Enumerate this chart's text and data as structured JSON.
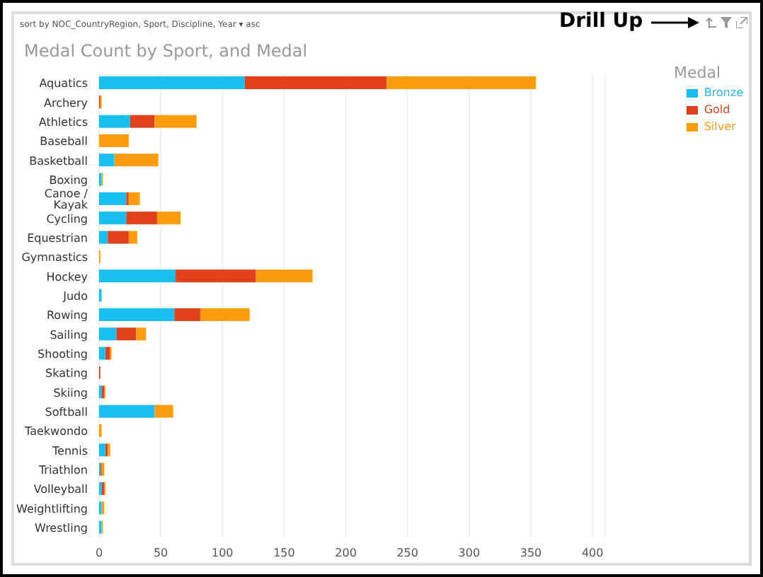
{
  "chart_data": {
    "type": "bar",
    "orientation": "horizontal",
    "stacked": true,
    "title": "Medal Count by Sport, and Medal",
    "subtitle": "sort by  NOC_CountryRegion, Sport, Discipline, Year  ▾  asc",
    "annotations": [
      "Drill Up"
    ],
    "legend_title": "Medal",
    "categories": [
      "Aquatics",
      "Archery",
      "Athletics",
      "Baseball",
      "Basketball",
      "Boxing",
      "Canoe / Kayak",
      "Cycling",
      "Equestrian",
      "Gymnastics",
      "Hockey",
      "Judo",
      "Rowing",
      "Sailing",
      "Shooting",
      "Skating",
      "Skiing",
      "Softball",
      "Taekwondo",
      "Tennis",
      "Triathlon",
      "Volleyball",
      "Weightlifting",
      "Wrestling"
    ],
    "series": [
      {
        "name": "Bronze",
        "color": "#19bfef",
        "values": [
          118,
          0,
          25,
          0,
          12,
          2,
          22,
          22,
          7,
          0,
          62,
          2,
          61,
          14,
          5,
          0,
          2,
          45,
          0,
          5,
          1,
          2,
          2,
          2
        ]
      },
      {
        "name": "Gold",
        "color": "#e0411b",
        "values": [
          115,
          1,
          20,
          0,
          0,
          0,
          2,
          25,
          17,
          0,
          65,
          0,
          21,
          16,
          4,
          1,
          2,
          0,
          0,
          2,
          1,
          2,
          0,
          0
        ]
      },
      {
        "name": "Silver",
        "color": "#fd9c0f",
        "values": [
          121,
          1,
          34,
          24,
          36,
          1,
          9,
          19,
          7,
          1,
          46,
          0,
          40,
          8,
          1,
          0,
          1,
          15,
          2,
          2,
          2,
          1,
          2,
          1
        ]
      }
    ],
    "xlim": [
      0,
      410
    ],
    "xticks": [
      0,
      50,
      100,
      150,
      200,
      250,
      300,
      350,
      400
    ],
    "grid": "x",
    "legend": "top right"
  }
}
